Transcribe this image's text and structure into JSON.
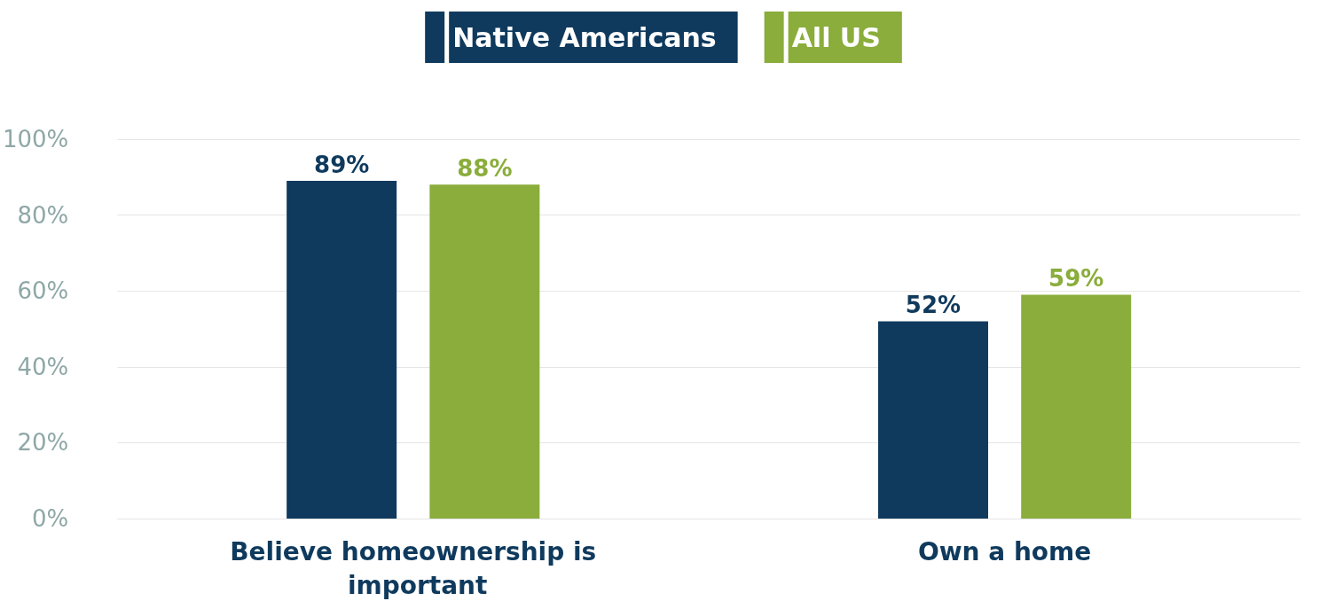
{
  "chart_data": {
    "type": "bar",
    "categories": [
      "Believe homeownership is important",
      "Own a home"
    ],
    "series": [
      {
        "name": "Native Americans",
        "color": "#0f3a5d",
        "values": [
          89,
          52
        ],
        "value_labels": [
          "89%",
          "52%"
        ]
      },
      {
        "name": "All US",
        "color": "#8aad3b",
        "values": [
          88,
          59
        ],
        "value_labels": [
          "88%",
          "59%"
        ]
      }
    ],
    "ylim": [
      0,
      100
    ],
    "yticks": [
      {
        "value": 0,
        "label": "0%"
      },
      {
        "value": 20,
        "label": "20%"
      },
      {
        "value": 40,
        "label": "40%"
      },
      {
        "value": 60,
        "label": "60%"
      },
      {
        "value": 80,
        "label": "80%"
      },
      {
        "value": 100,
        "label": "100%"
      }
    ],
    "grid": "y",
    "legend": "top"
  }
}
